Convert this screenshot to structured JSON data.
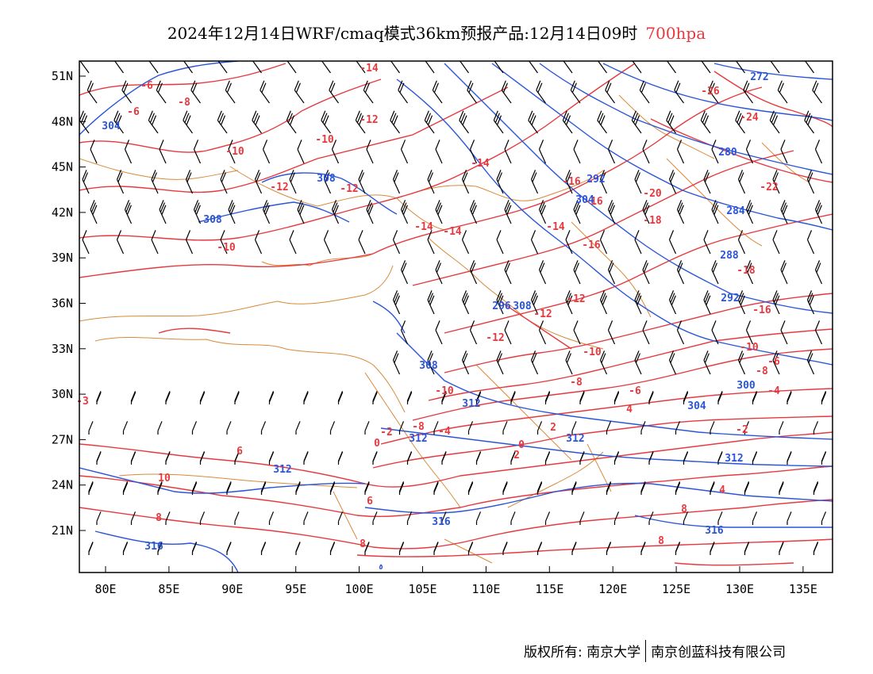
{
  "title": {
    "text": "2024年12月14日WRF/cmaq模式36km预报产品:12月14日09时",
    "level": "700hpa",
    "level_color": "#e6393f"
  },
  "colors": {
    "temperature_contour": "#e6393f",
    "height_contour": "#2a55d8",
    "wind_barb": "#000000",
    "boundaries": "#d98a3a"
  },
  "map": {
    "lon_range": [
      78,
      138
    ],
    "lat_range": [
      17.5,
      52.5
    ],
    "lon_ticks": [
      "80E",
      "85E",
      "90E",
      "95E",
      "100E",
      "105E",
      "110E",
      "115E",
      "120E",
      "125E",
      "130E",
      "135E"
    ],
    "lat_ticks": [
      "51N",
      "48N",
      "45N",
      "42N",
      "39N",
      "36N",
      "33N",
      "30N",
      "27N",
      "24N",
      "21N"
    ]
  },
  "temperature_labels": [
    "-6",
    "-6",
    "-8",
    "-10",
    "-10",
    "-10",
    "-12",
    "-12",
    "-12",
    "-14",
    "-14",
    "-14",
    "-16",
    "-16",
    "-18",
    "-20",
    "-22",
    "-24",
    "-26",
    "-18",
    "-16",
    "-14",
    "-12",
    "-12",
    "-10",
    "-10",
    "-8",
    "-8",
    "-6",
    "-4",
    "-6",
    "-4",
    "-2",
    "0",
    "2",
    "4",
    "4",
    "6",
    "6",
    "8",
    "8",
    "8",
    "8",
    "10",
    "-2",
    "0",
    "2",
    "-3",
    "-8",
    "-10",
    "-16",
    "-14",
    "-12"
  ],
  "height_labels": [
    "304",
    "308",
    "308",
    "272",
    "280",
    "284",
    "288",
    "292",
    "296",
    "300",
    "304",
    "308",
    "312",
    "312",
    "312",
    "312",
    "312",
    "316",
    "316",
    "316",
    "308",
    "292",
    "304"
  ],
  "footer": {
    "left": "版权所有: 南京大学",
    "right": "南京创蓝科技有限公司"
  }
}
